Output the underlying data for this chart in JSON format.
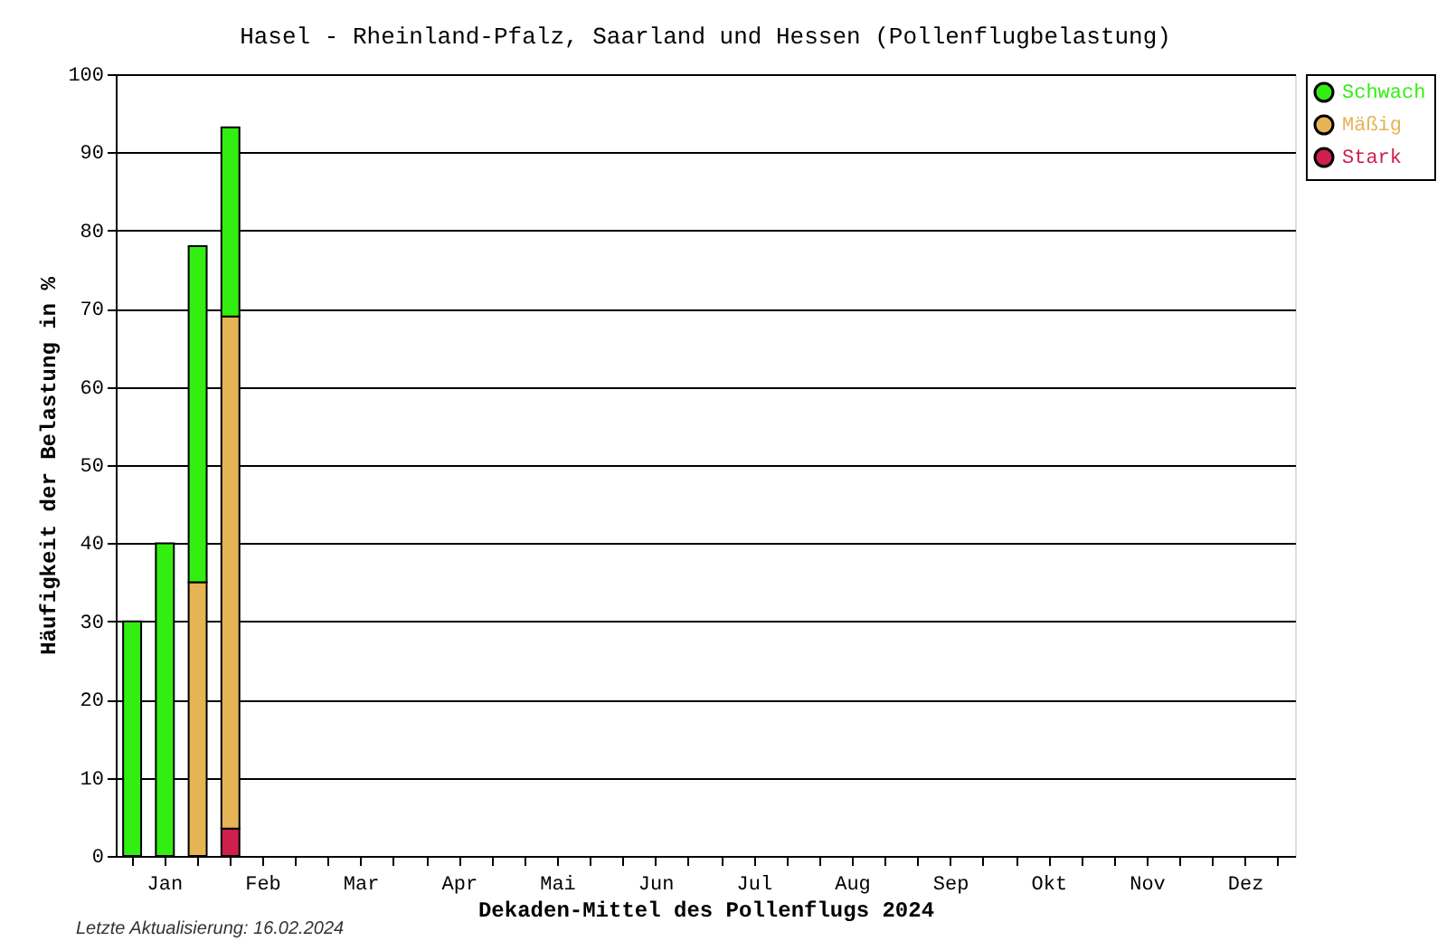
{
  "chart_data": {
    "type": "bar",
    "title": "Hasel - Rheinland-Pfalz, Saarland und Hessen (Pollenflugbelastung)",
    "xlabel": "Dekaden-Mittel des Pollenflugs 2024",
    "ylabel": "Häufigkeit der Belastung in %",
    "categories": [
      null,
      "Jan",
      null,
      null,
      "Feb",
      null,
      null,
      "Mar",
      null,
      null,
      "Apr",
      null,
      null,
      "Mai",
      null,
      null,
      "Jun",
      null,
      null,
      "Jul",
      null,
      null,
      "Aug",
      null,
      null,
      "Sep",
      null,
      null,
      "Okt",
      null,
      null,
      "Nov",
      null,
      null,
      "Dez",
      null
    ],
    "stacked": true,
    "series": [
      {
        "name": "Stark",
        "color": "#d01f4d",
        "values": [
          null,
          null,
          null,
          3.5,
          null,
          null,
          null,
          null,
          null,
          null,
          null,
          null,
          null,
          null,
          null,
          null,
          null,
          null,
          null,
          null,
          null,
          null,
          null,
          null,
          null,
          null,
          null,
          null,
          null,
          null,
          null,
          null,
          null,
          null,
          null,
          null
        ]
      },
      {
        "name": "Mäßig",
        "color": "#e6b455",
        "values": [
          null,
          null,
          35,
          65.5,
          null,
          null,
          null,
          null,
          null,
          null,
          null,
          null,
          null,
          null,
          null,
          null,
          null,
          null,
          null,
          null,
          null,
          null,
          null,
          null,
          null,
          null,
          null,
          null,
          null,
          null,
          null,
          null,
          null,
          null,
          null,
          null
        ]
      },
      {
        "name": "Schwach",
        "color": "#33ee11",
        "values": [
          30,
          40,
          43,
          24.2,
          null,
          null,
          null,
          null,
          null,
          null,
          null,
          null,
          null,
          null,
          null,
          null,
          null,
          null,
          null,
          null,
          null,
          null,
          null,
          null,
          null,
          null,
          null,
          null,
          null,
          null,
          null,
          null,
          null,
          null,
          null,
          null
        ]
      }
    ],
    "ylim": [
      0,
      100
    ],
    "yticks": [
      0,
      10,
      20,
      30,
      40,
      50,
      60,
      70,
      80,
      90,
      100
    ],
    "grid": "y",
    "legend": "top right",
    "annotations": [
      "Letzte Aktualisierung: 16.02.2024"
    ]
  }
}
